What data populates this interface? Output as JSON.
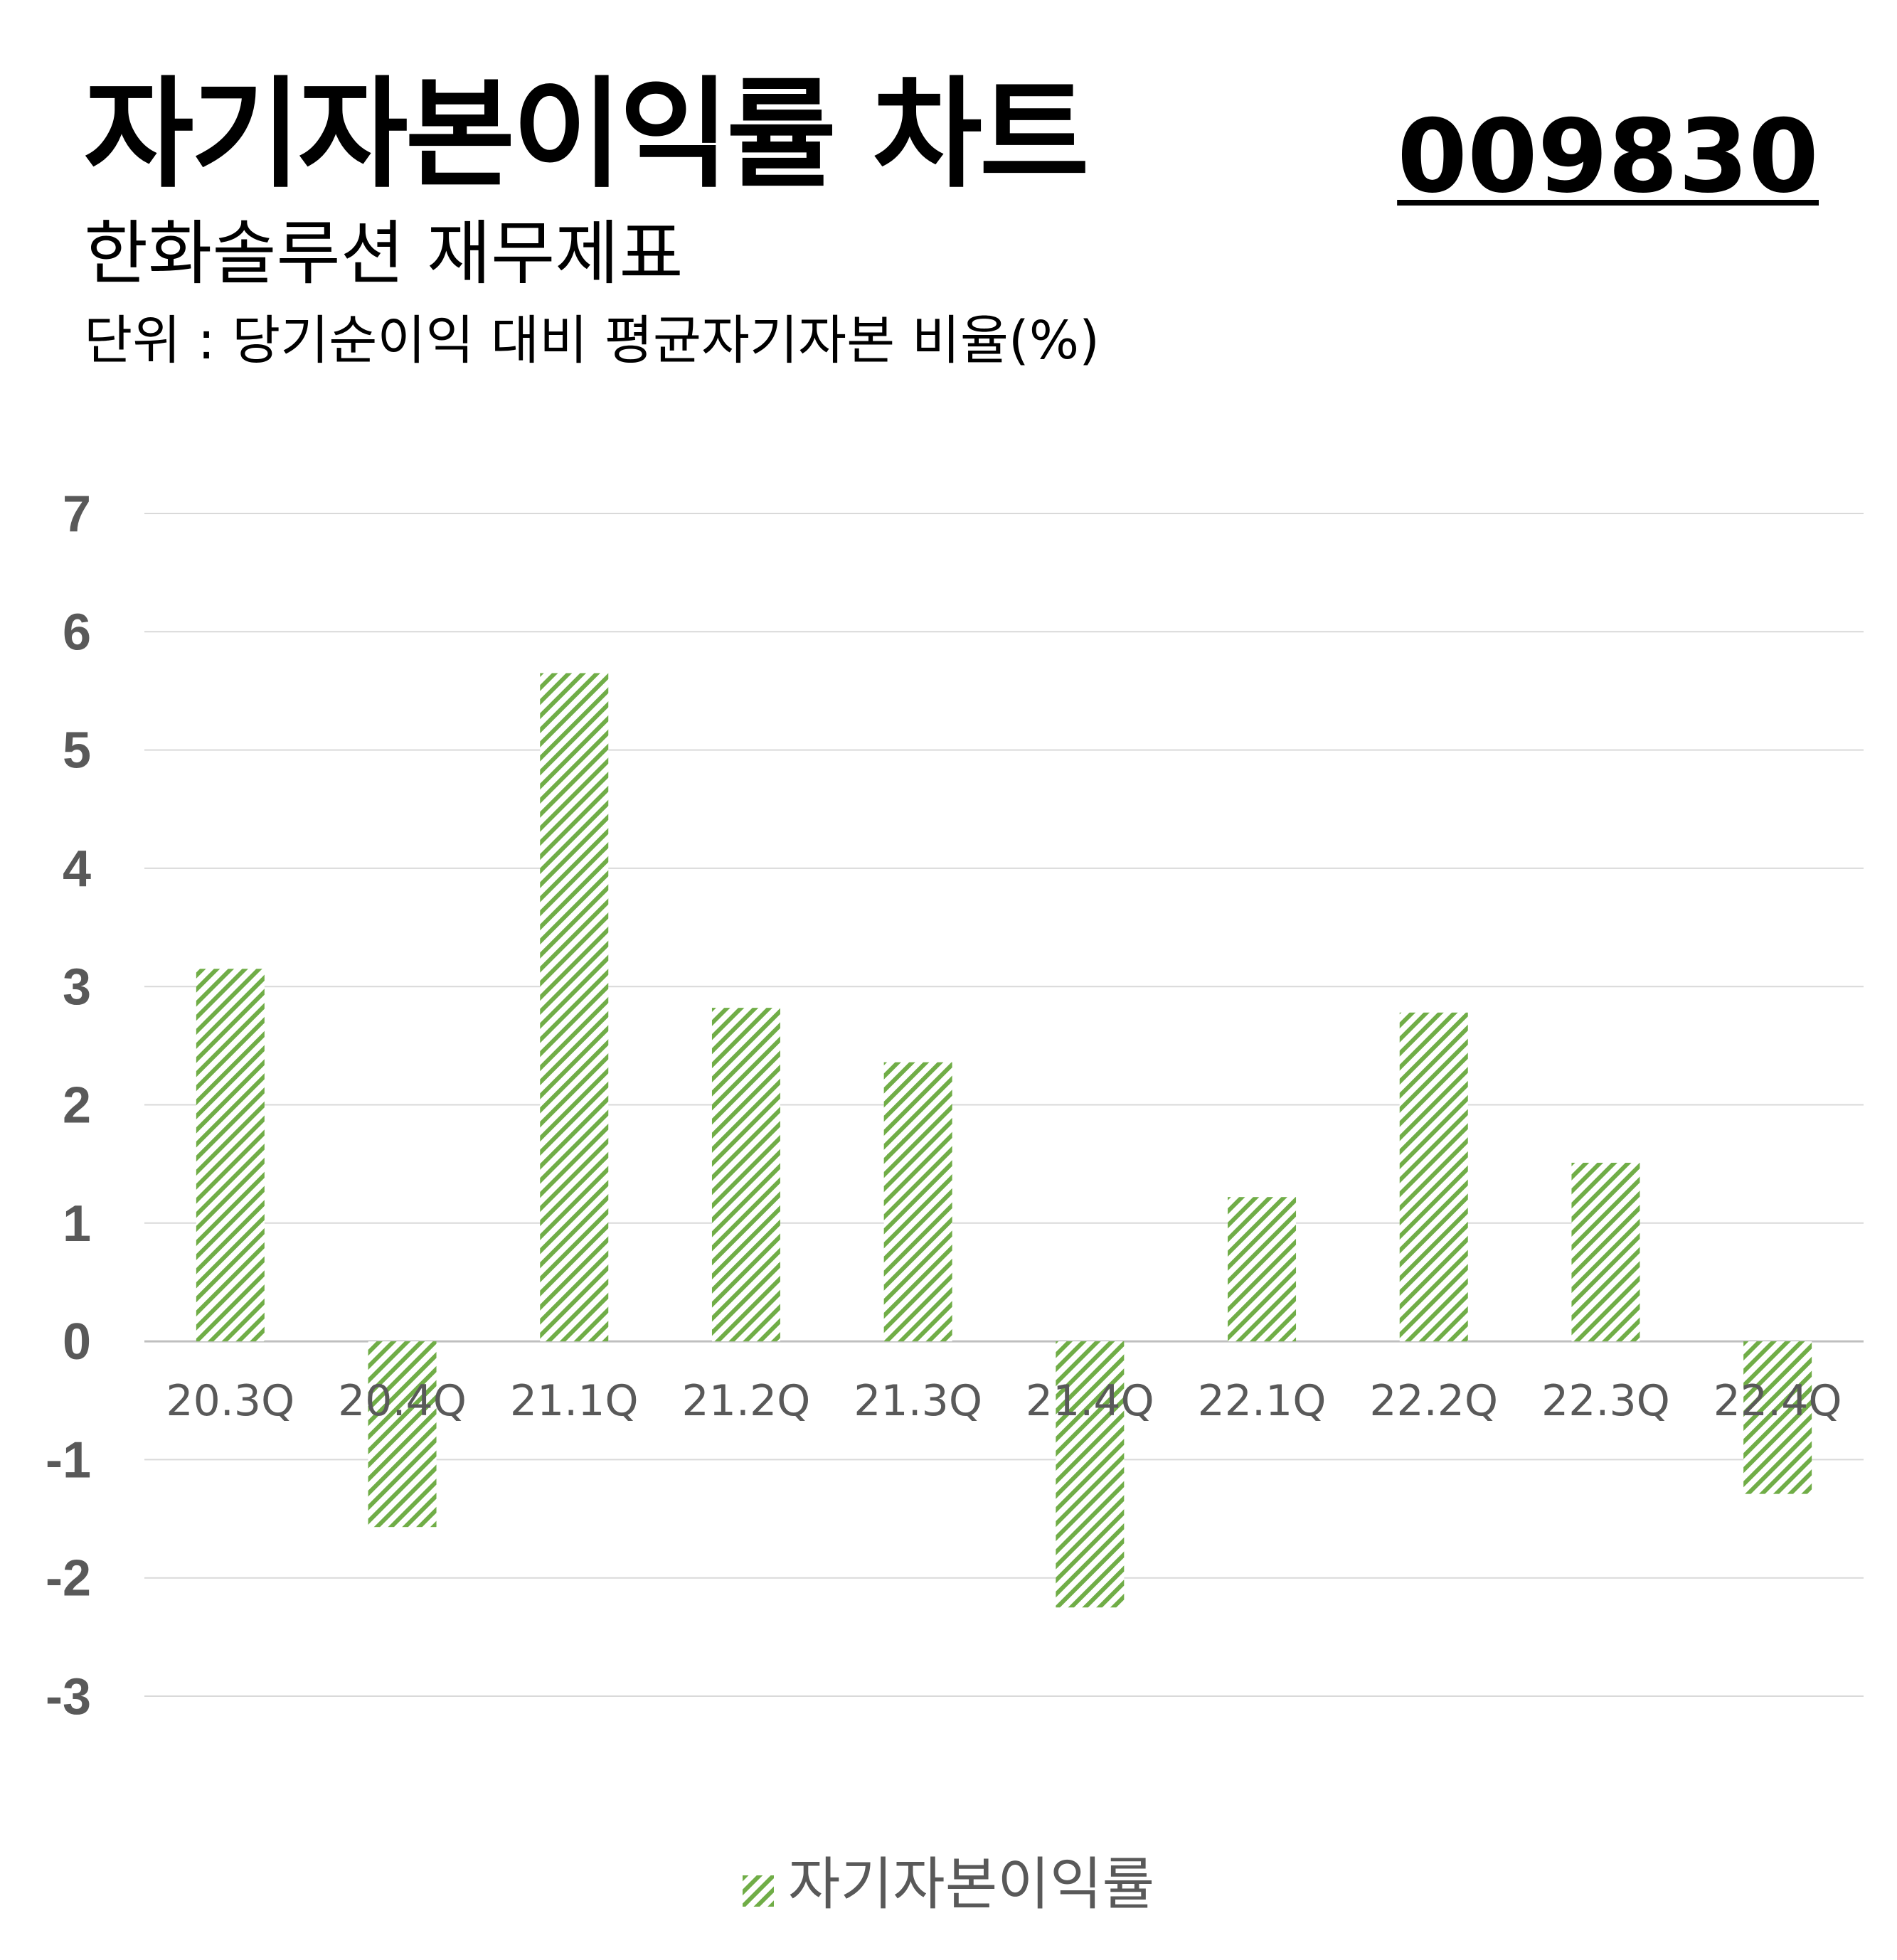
{
  "header": {
    "title": "자기자본이익률 차트",
    "code": "009830",
    "subtitle": "한화솔루션 재무제표",
    "unit": "단위 : 당기순이익 대비 평균자기자본 비율(%)"
  },
  "colors": {
    "bar": "#70ad47",
    "grid": "#d9d9d9",
    "axis_text": "#595959"
  },
  "chart_data": {
    "type": "bar",
    "categories": [
      "20.3Q",
      "20.4Q",
      "21.1Q",
      "21.2Q",
      "21.3Q",
      "21.4Q",
      "22.1Q",
      "22.2Q",
      "22.3Q",
      "22.4Q"
    ],
    "series": [
      {
        "name": "자기자본이익률",
        "values": [
          3.15,
          -1.57,
          5.65,
          2.82,
          2.36,
          -2.25,
          1.22,
          2.78,
          1.51,
          -1.29
        ],
        "pattern": "diagonal-hatch"
      }
    ],
    "ylim": [
      -3,
      7
    ],
    "yticks": [
      "7",
      "6",
      "5",
      "4",
      "3",
      "2",
      "1",
      "0",
      "-1",
      "-2",
      "-3"
    ],
    "grid": true,
    "legend_position": "bottom"
  }
}
